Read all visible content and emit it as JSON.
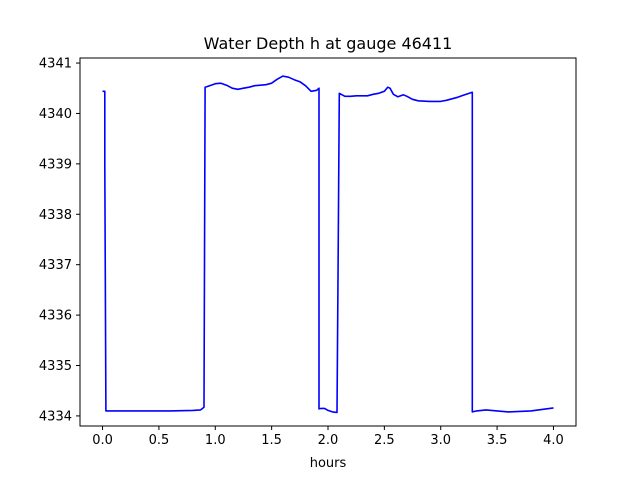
{
  "chart_data": {
    "type": "line",
    "title": "Water Depth h at gauge 46411",
    "xlabel": "hours",
    "ylabel": "",
    "xlim": [
      -0.2,
      4.2
    ],
    "ylim": [
      4333.8,
      4341.1
    ],
    "xticks": [
      0.0,
      0.5,
      1.0,
      1.5,
      2.0,
      2.5,
      3.0,
      3.5,
      4.0
    ],
    "xtick_labels": [
      "0.0",
      "0.5",
      "1.0",
      "1.5",
      "2.0",
      "2.5",
      "3.0",
      "3.5",
      "4.0"
    ],
    "yticks": [
      4334,
      4335,
      4336,
      4337,
      4338,
      4339,
      4340,
      4341
    ],
    "ytick_labels": [
      "4334",
      "4335",
      "4336",
      "4337",
      "4338",
      "4339",
      "4340",
      "4341"
    ],
    "grid": false,
    "legend": "none",
    "series": [
      {
        "color": "#0000ff",
        "x": [
          0.0,
          0.02,
          0.02,
          0.03,
          0.2,
          0.4,
          0.6,
          0.8,
          0.87,
          0.9,
          0.91,
          0.95,
          1.0,
          1.05,
          1.1,
          1.15,
          1.2,
          1.25,
          1.3,
          1.35,
          1.4,
          1.45,
          1.5,
          1.55,
          1.6,
          1.65,
          1.7,
          1.75,
          1.8,
          1.85,
          1.9,
          1.92,
          1.92,
          1.94,
          1.97,
          2.0,
          2.04,
          2.08,
          2.09,
          2.1,
          2.15,
          2.2,
          2.25,
          2.3,
          2.35,
          2.4,
          2.45,
          2.5,
          2.53,
          2.55,
          2.58,
          2.62,
          2.67,
          2.7,
          2.75,
          2.8,
          2.9,
          3.0,
          3.05,
          3.1,
          3.15,
          3.2,
          3.28,
          3.28,
          3.32,
          3.4,
          3.5,
          3.6,
          3.7,
          3.8,
          3.9,
          4.0
        ],
        "y": [
          4340.44,
          4340.44,
          4339.0,
          4334.1,
          4334.1,
          4334.1,
          4334.1,
          4334.11,
          4334.12,
          4334.17,
          4340.52,
          4340.55,
          4340.59,
          4340.6,
          4340.56,
          4340.5,
          4340.48,
          4340.5,
          4340.52,
          4340.55,
          4340.56,
          4340.57,
          4340.6,
          4340.68,
          4340.74,
          4340.72,
          4340.67,
          4340.63,
          4340.55,
          4340.44,
          4340.46,
          4340.5,
          4334.14,
          4334.15,
          4334.15,
          4334.11,
          4334.08,
          4334.07,
          4337.0,
          4340.4,
          4340.34,
          4340.34,
          4340.35,
          4340.35,
          4340.35,
          4340.38,
          4340.4,
          4340.44,
          4340.52,
          4340.5,
          4340.38,
          4340.33,
          4340.37,
          4340.34,
          4340.28,
          4340.25,
          4340.24,
          4340.24,
          4340.26,
          4340.29,
          4340.32,
          4340.36,
          4340.42,
          4334.08,
          4334.1,
          4334.12,
          4334.1,
          4334.08,
          4334.09,
          4334.1,
          4334.13,
          4334.16
        ]
      }
    ]
  }
}
